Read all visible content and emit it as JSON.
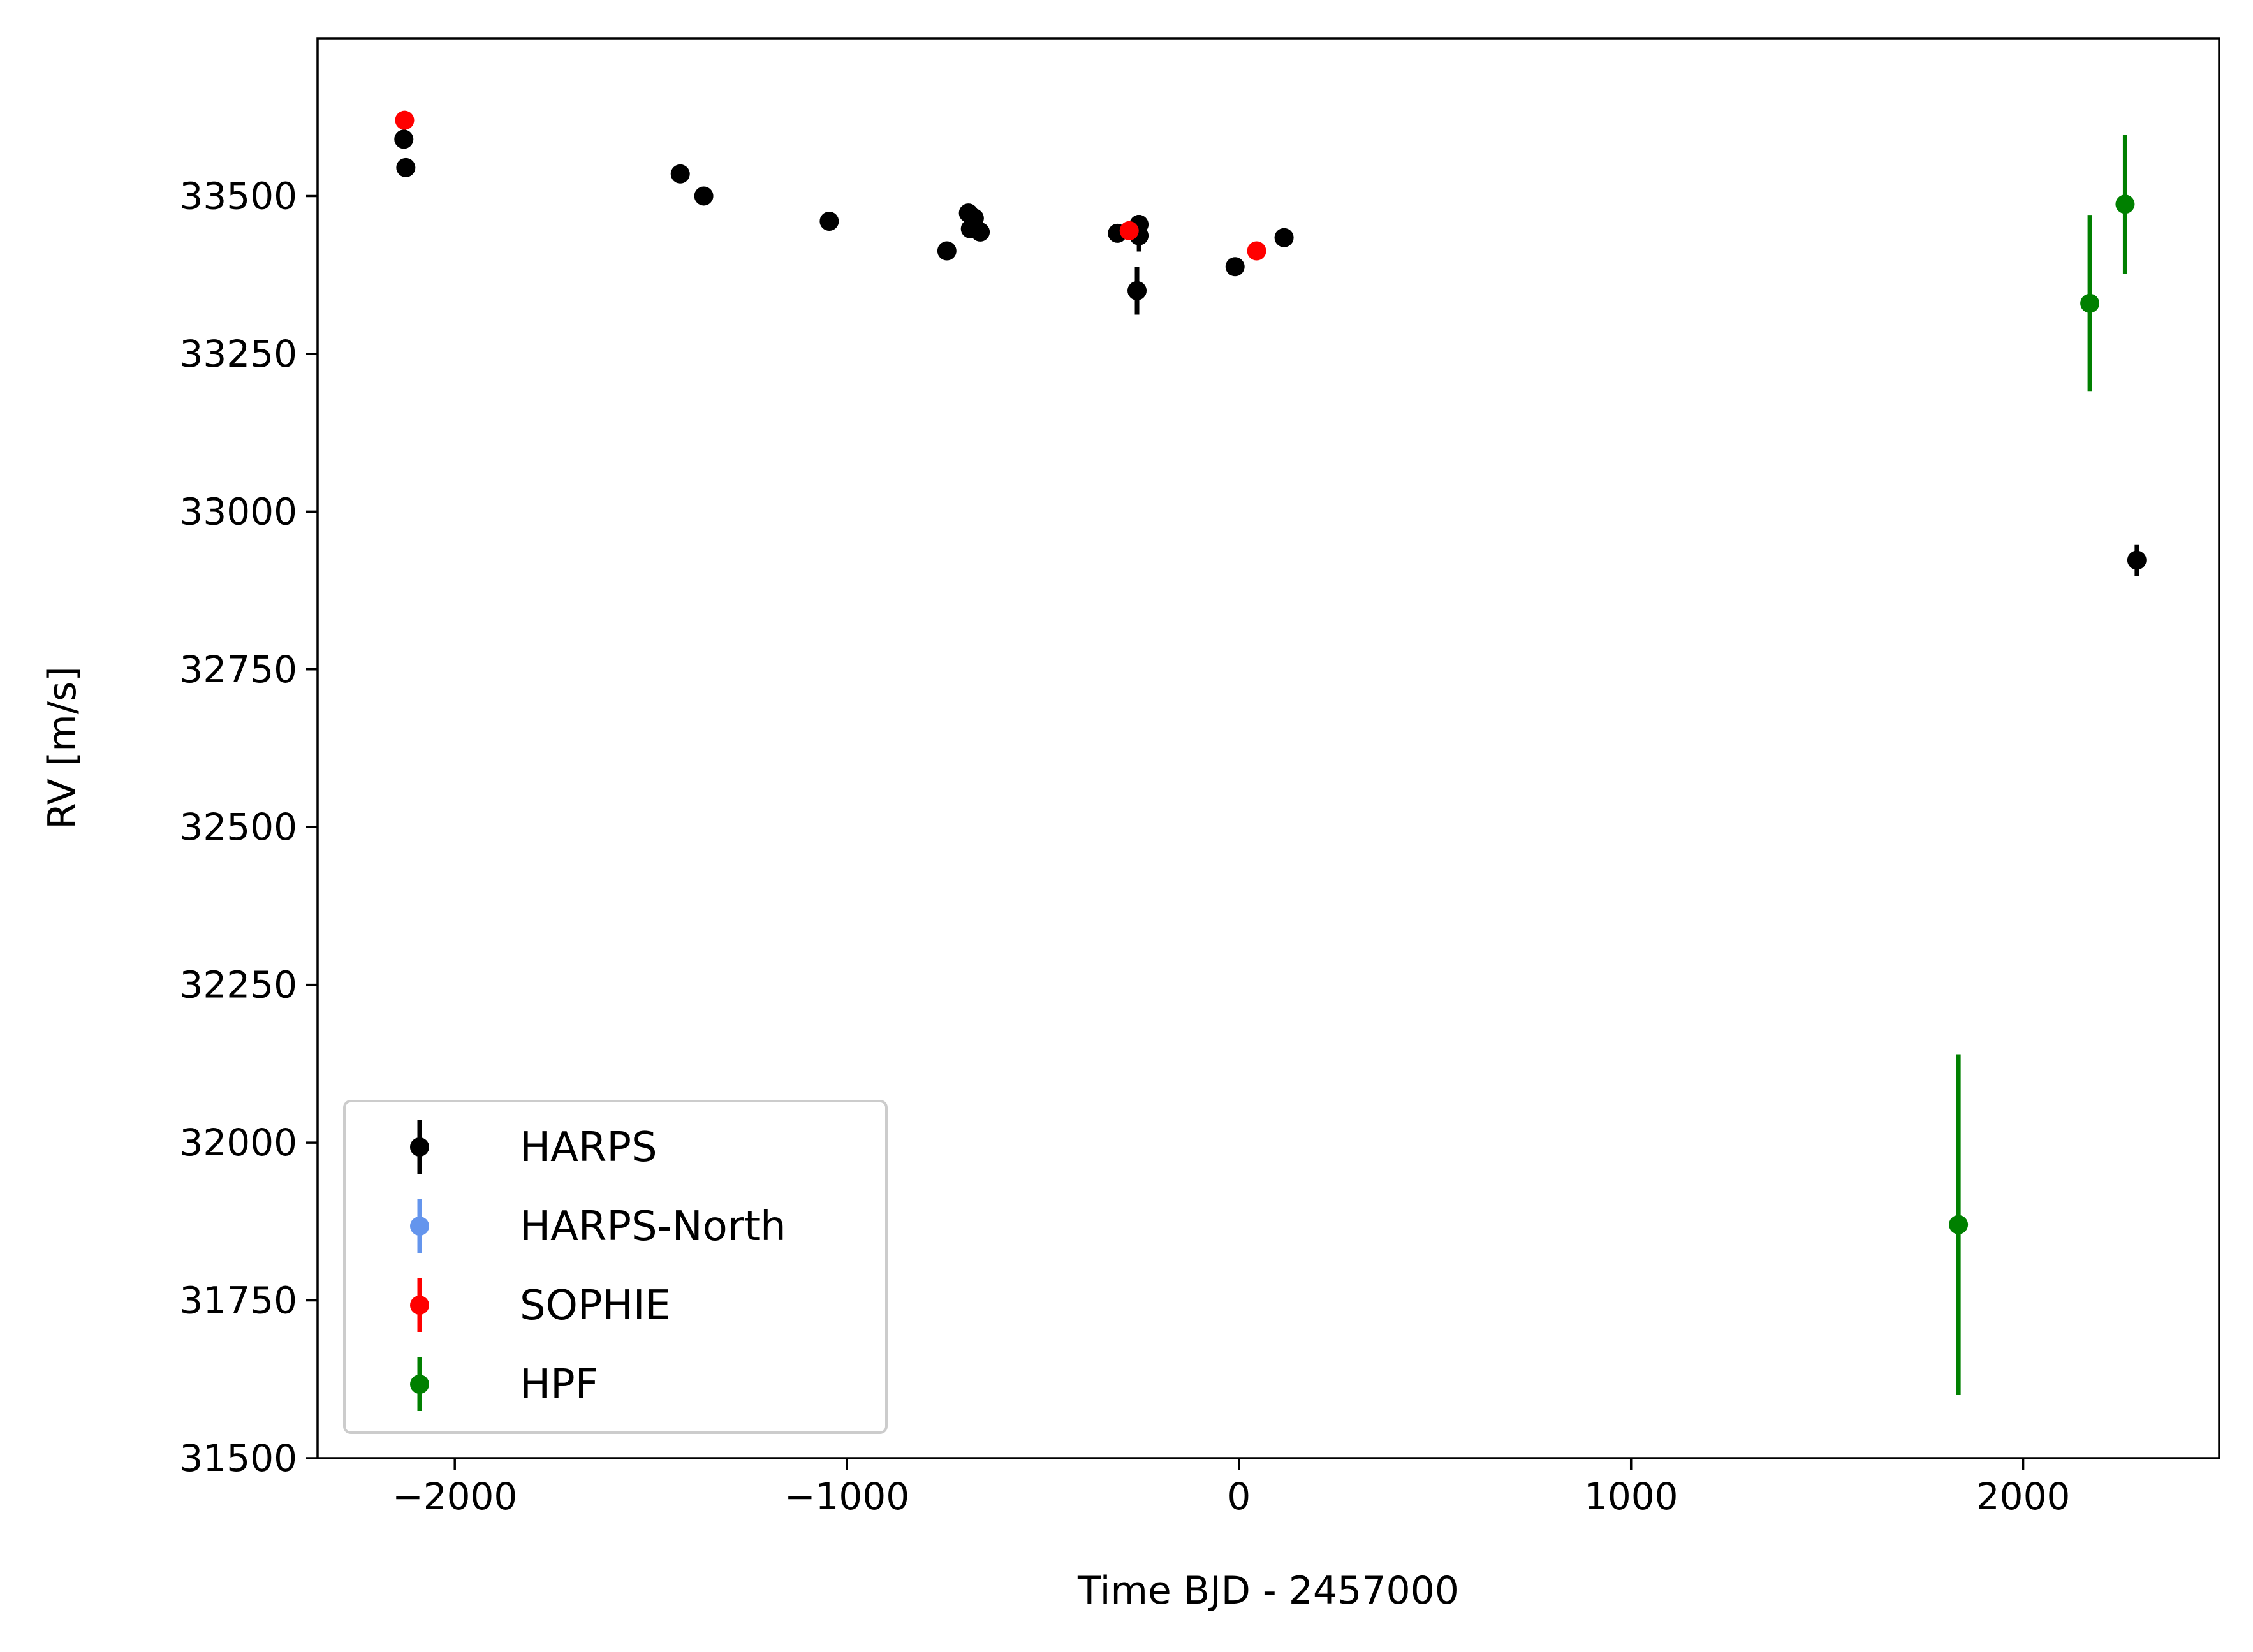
{
  "chart_data": {
    "type": "scatter",
    "xlabel": "Time BJD - 2457000",
    "ylabel": "RV [m/s]",
    "xlim": [
      -2350,
      2500
    ],
    "ylim": [
      31500,
      33750
    ],
    "xticks": [
      -2000,
      -1000,
      0,
      1000,
      2000
    ],
    "xtick_labels": [
      "−2000",
      "−1000",
      "0",
      "1000",
      "2000"
    ],
    "yticks": [
      31500,
      31750,
      32000,
      32250,
      32500,
      32750,
      33000,
      33250,
      33500
    ],
    "ytick_labels": [
      "31500",
      "31750",
      "32000",
      "32250",
      "32500",
      "32750",
      "33000",
      "33250",
      "33500"
    ],
    "grid": false,
    "legend_position": "lower-left",
    "series": [
      {
        "name": "HARPS",
        "color": "#000000",
        "points": [
          {
            "x": -2130,
            "y": 33590,
            "err": 15
          },
          {
            "x": -2125,
            "y": 33545,
            "err": 8
          },
          {
            "x": -1425,
            "y": 33535,
            "err": 8
          },
          {
            "x": -1365,
            "y": 33500,
            "err": 8
          },
          {
            "x": -1045,
            "y": 33460,
            "err": 8
          },
          {
            "x": -745,
            "y": 33413,
            "err": 8
          },
          {
            "x": -690,
            "y": 33473,
            "err": 8
          },
          {
            "x": -675,
            "y": 33465,
            "err": 8
          },
          {
            "x": -685,
            "y": 33448,
            "err": 8
          },
          {
            "x": -660,
            "y": 33443,
            "err": 8
          },
          {
            "x": -310,
            "y": 33441,
            "err": 8
          },
          {
            "x": -255,
            "y": 33455,
            "err": 15
          },
          {
            "x": -255,
            "y": 33437,
            "err": 25
          },
          {
            "x": -260,
            "y": 33350,
            "err": 38
          },
          {
            "x": -10,
            "y": 33388,
            "err": 8
          },
          {
            "x": 115,
            "y": 33434,
            "err": 8
          },
          {
            "x": 2290,
            "y": 32923,
            "err": 25
          }
        ]
      },
      {
        "name": "HARPS-North",
        "color": "#6495ed",
        "points": []
      },
      {
        "name": "SOPHIE",
        "color": "#ff0000",
        "points": [
          {
            "x": -2128,
            "y": 33620,
            "err": 8
          },
          {
            "x": -280,
            "y": 33445,
            "err": 8
          },
          {
            "x": 45,
            "y": 33413,
            "err": 8
          }
        ]
      },
      {
        "name": "HPF",
        "color": "#008000",
        "points": [
          {
            "x": 1835,
            "y": 31870,
            "err": 270
          },
          {
            "x": 2170,
            "y": 33330,
            "err": 140
          },
          {
            "x": 2260,
            "y": 33487,
            "err": 110
          }
        ]
      }
    ]
  }
}
